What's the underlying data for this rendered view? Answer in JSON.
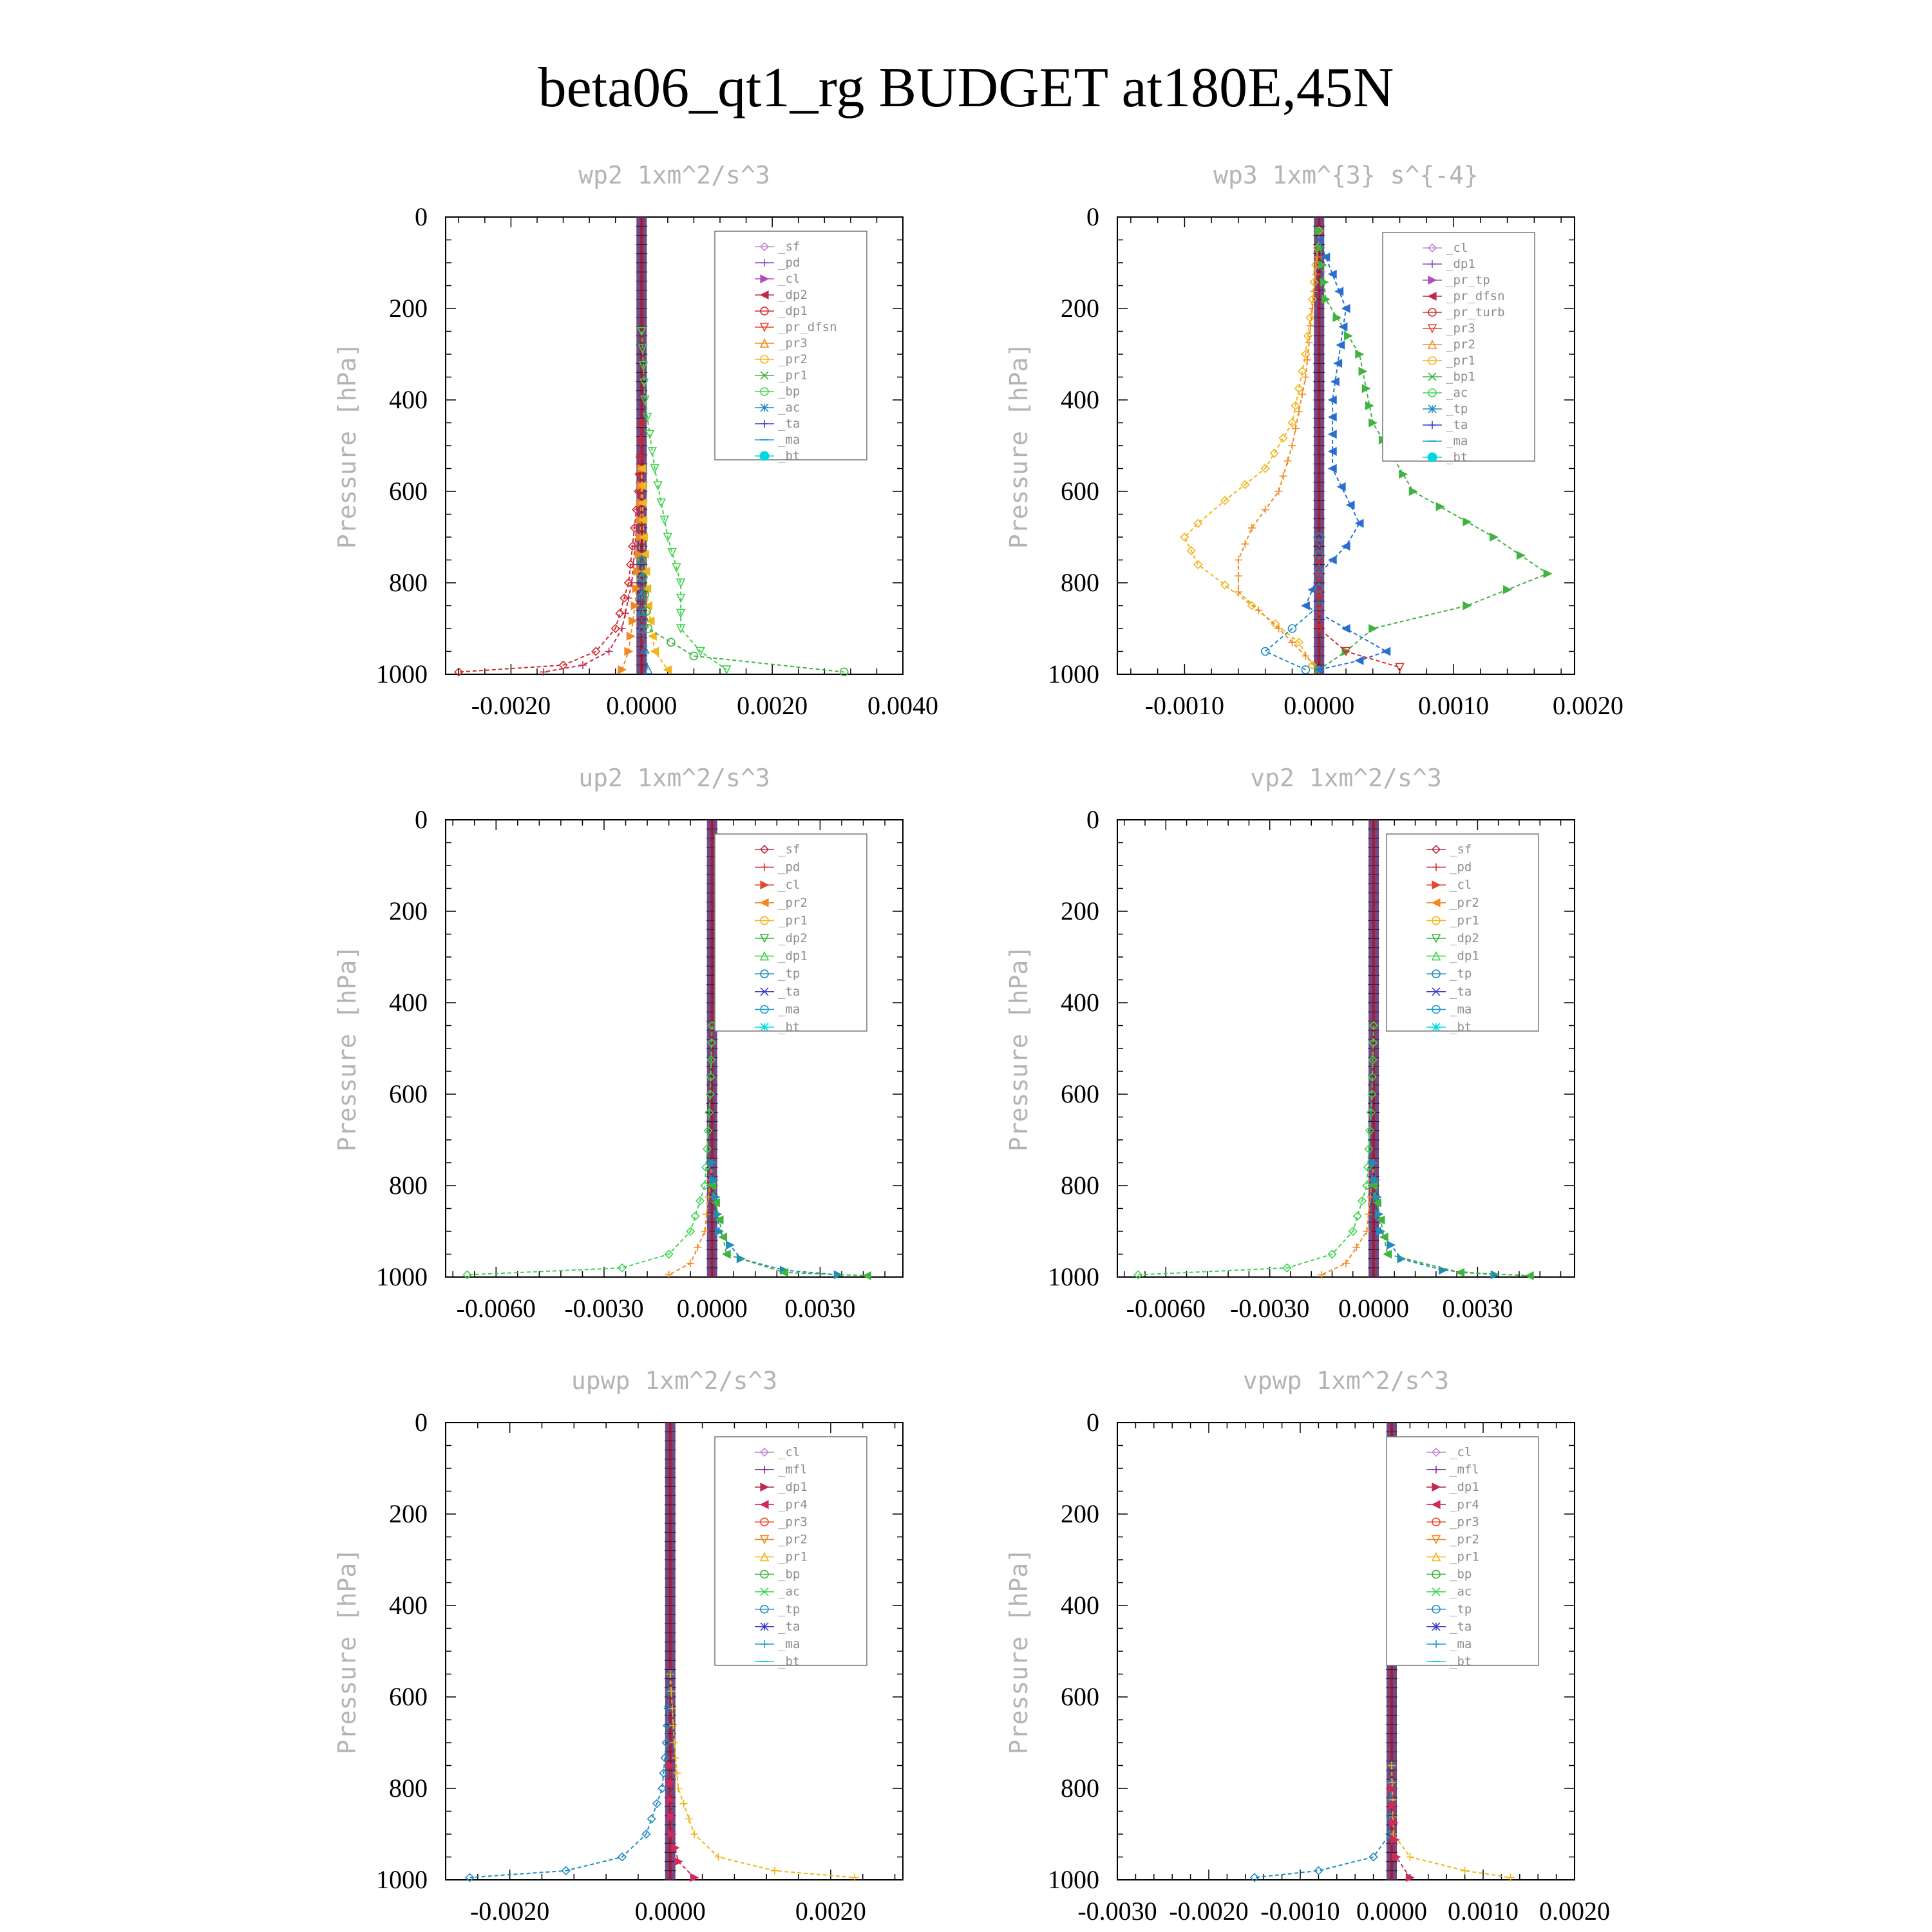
{
  "title": "beta06_qt1_rg  BUDGET at180E,45N",
  "colors": {
    "sf": "#c08ad8",
    "pd": "#8a4fc7",
    "cl": "#b04fb8",
    "dp2": "#c02a4a",
    "dp1": "#d42a2a",
    "pr_dfsn": "#e8452f",
    "pr3": "#f08a20",
    "pr2": "#f2b51a",
    "pr1": "#40b340",
    "bp": "#3fd44f",
    "ac": "#1f8bbf",
    "ta": "#3a3ad0",
    "ma": "#1f9ed0",
    "bt": "#00d8e0",
    "tp": "#2a6fd0",
    "mfl": "#7a2a8f",
    "pr4": "#d02a5a",
    "bar": "#5a2a6a",
    "barAlt": "#b0102a"
  },
  "chart_data": [
    {
      "type": "line",
      "title": "wp2  1xm^2/s^3",
      "ylabel": "Pressure [hPa]",
      "xlim": [
        -0.003,
        0.004
      ],
      "xticks": [
        "-0.0020",
        "0.0000",
        "0.0020",
        "0.0040"
      ],
      "xtick_values": [
        -0.002,
        0,
        0.002,
        0.004
      ],
      "ylim": [
        0,
        1000
      ],
      "yticks": [
        "0",
        "200",
        "400",
        "600",
        "800",
        "1000"
      ],
      "legend_position": "top-right",
      "legend": [
        "_sf",
        "_pd",
        "_cl",
        "_dp2",
        "_dp1",
        "_pr_dfsn",
        "_pr3",
        "_pr2",
        "_pr1",
        "_bp",
        "_ac",
        "_ta",
        "_ma",
        "_bt"
      ],
      "legend_keys": [
        "sf",
        "pd",
        "cl",
        "dp2",
        "dp1",
        "pr_dfsn",
        "pr3",
        "pr2",
        "pr1",
        "bp",
        "ac",
        "ta",
        "ma",
        "bt"
      ],
      "series": [
        {
          "key": "dp1",
          "y": [
            600,
            800,
            900,
            950,
            980,
            995
          ],
          "x": [
            -5e-05,
            -0.0002,
            -0.0004,
            -0.0007,
            -0.0012,
            -0.0028
          ]
        },
        {
          "key": "dp2",
          "y": [
            600,
            800,
            900,
            950,
            980,
            995
          ],
          "x": [
            -3e-05,
            -0.00015,
            -0.0003,
            -0.0005,
            -0.0009,
            -0.0015
          ]
        },
        {
          "key": "pr3",
          "y": [
            700,
            850,
            950,
            990
          ],
          "x": [
            -2e-05,
            -0.0001,
            -0.0002,
            -0.0003
          ]
        },
        {
          "key": "pr2",
          "y": [
            700,
            850,
            950,
            990
          ],
          "x": [
            3e-05,
            0.0001,
            0.0002,
            0.0004
          ]
        },
        {
          "key": "pr1",
          "y": [
            900,
            960,
            995
          ],
          "x": [
            0.0001,
            0.0008,
            0.0031
          ]
        },
        {
          "key": "bp",
          "y": [
            400,
            550,
            700,
            800,
            900,
            950,
            990
          ],
          "x": [
            5e-05,
            0.0002,
            0.0004,
            0.0006,
            0.0006,
            0.0009,
            0.0013
          ]
        },
        {
          "key": "ac",
          "y": [
            900,
            990
          ],
          "x": [
            0.0,
            0.0001
          ]
        }
      ]
    },
    {
      "type": "line",
      "title": "wp3  1xm^{3} s^{-4}",
      "ylabel": "Pressure [hPa]",
      "xlim": [
        -0.0015,
        0.0019
      ],
      "xticks": [
        "-0.0010",
        "0.0000",
        "0.0010",
        "0.0020"
      ],
      "xtick_values": [
        -0.001,
        0,
        0.001,
        0.002
      ],
      "ylim": [
        0,
        1000
      ],
      "yticks": [
        "0",
        "200",
        "400",
        "600",
        "800",
        "1000"
      ],
      "legend_position": "top-right",
      "legend": [
        "_cl",
        "_dp1",
        "_pr_tp",
        "_pr_dfsn",
        "_pr_turb",
        "_pr3",
        "_pr2",
        "_pr1",
        "_bp1",
        "_ac",
        "_tp",
        "_ta",
        "_ma",
        "_bt"
      ],
      "legend_keys": [
        "sf",
        "pd",
        "cl",
        "dp2",
        "dp1",
        "pr_dfsn",
        "pr3",
        "pr2",
        "pr1",
        "bp",
        "ac",
        "ta",
        "ma",
        "bt"
      ],
      "series": [
        {
          "key": "pr2",
          "y": [
            180,
            300,
            450,
            550,
            620,
            670,
            700,
            760,
            850,
            930,
            980
          ],
          "x": [
            -5e-05,
            -0.0001,
            -0.0002,
            -0.0004,
            -0.0007,
            -0.0009,
            -0.001,
            -0.0009,
            -0.0005,
            -0.00015,
            -5e-05
          ]
        },
        {
          "key": "pr3",
          "y": [
            200,
            350,
            500,
            600,
            680,
            750,
            820,
            900,
            960,
            990
          ],
          "x": [
            -5e-05,
            -0.0001,
            -0.0002,
            -0.0003,
            -0.0005,
            -0.0006,
            -0.0006,
            -0.0003,
            -0.0001,
            0.0
          ]
        },
        {
          "key": "pr1",
          "y": [
            180,
            300,
            450,
            600,
            700,
            780,
            850,
            900,
            950,
            990
          ],
          "x": [
            5e-05,
            0.0003,
            0.0004,
            0.0007,
            0.0013,
            0.0017,
            0.0011,
            0.0004,
            0.0002,
            0.0
          ]
        },
        {
          "key": "tp",
          "y": [
            200,
            400,
            550,
            670,
            720,
            780,
            850,
            900,
            950,
            970,
            990
          ],
          "x": [
            0.0002,
            0.0001,
            0.0001,
            0.0003,
            0.0002,
            0.0,
            -0.0001,
            0.0002,
            0.0005,
            0.0003,
            0.0
          ]
        },
        {
          "key": "ac",
          "y": [
            850,
            900,
            950,
            990
          ],
          "x": [
            0.0,
            -0.0002,
            -0.0004,
            -0.0001
          ]
        },
        {
          "key": "dp1",
          "y": [
            900,
            950,
            985
          ],
          "x": [
            0.0,
            0.0002,
            0.0006
          ]
        }
      ]
    },
    {
      "type": "line",
      "title": "up2  1xm^2/s^3",
      "ylabel": "Pressure [hPa]",
      "xlim": [
        -0.0074,
        0.0053
      ],
      "xticks": [
        "-0.0060",
        "-0.0030",
        "0.0000",
        "0.0030"
      ],
      "xtick_values": [
        -0.006,
        -0.003,
        0,
        0.003
      ],
      "ylim": [
        0,
        1000
      ],
      "yticks": [
        "0",
        "200",
        "400",
        "600",
        "800",
        "1000"
      ],
      "legend_position": "top-right",
      "legend": [
        "_sf",
        "_pd",
        "_cl",
        "_pr2",
        "_pr1",
        "_dp2",
        "_dp1",
        "_tp",
        "_ta",
        "_ma",
        "_bt"
      ],
      "legend_keys": [
        "dp2",
        "dp1",
        "pr_dfsn",
        "pr3",
        "pr2",
        "pr1",
        "bp",
        "ac",
        "ta",
        "ma",
        "bt"
      ],
      "series": [
        {
          "key": "bp",
          "y": [
            600,
            800,
            900,
            950,
            980,
            995
          ],
          "x": [
            -5e-05,
            -0.0002,
            -0.0006,
            -0.0012,
            -0.0025,
            -0.0068
          ]
        },
        {
          "key": "pr3",
          "y": [
            900,
            970,
            995
          ],
          "x": [
            -0.0002,
            -0.0006,
            -0.0012
          ]
        },
        {
          "key": "ac",
          "y": [
            900,
            960,
            985,
            995
          ],
          "x": [
            0.0002,
            0.0008,
            0.002,
            0.0035
          ]
        },
        {
          "key": "pr1",
          "y": [
            950,
            990,
            997
          ],
          "x": [
            0.0004,
            0.002,
            0.0043
          ]
        }
      ]
    },
    {
      "type": "line",
      "title": "vp2  1xm^2/s^3",
      "ylabel": "Pressure [hPa]",
      "xlim": [
        -0.0074,
        0.0058
      ],
      "xticks": [
        "-0.0060",
        "-0.0030",
        "0.0000",
        "0.0030"
      ],
      "xtick_values": [
        -0.006,
        -0.003,
        0,
        0.003
      ],
      "ylim": [
        0,
        1000
      ],
      "yticks": [
        "0",
        "200",
        "400",
        "600",
        "800",
        "1000"
      ],
      "legend_position": "top-right",
      "legend": [
        "_sf",
        "_pd",
        "_cl",
        "_pr2",
        "_pr1",
        "_dp2",
        "_dp1",
        "_tp",
        "_ta",
        "_ma",
        "_bt"
      ],
      "legend_keys": [
        "dp2",
        "dp1",
        "pr_dfsn",
        "pr3",
        "pr2",
        "pr1",
        "bp",
        "ac",
        "ta",
        "ma",
        "bt"
      ],
      "series": [
        {
          "key": "bp",
          "y": [
            600,
            800,
            900,
            950,
            980,
            995
          ],
          "x": [
            -5e-05,
            -0.0002,
            -0.0006,
            -0.0012,
            -0.0025,
            -0.0068
          ]
        },
        {
          "key": "pr3",
          "y": [
            900,
            970,
            995
          ],
          "x": [
            -0.0002,
            -0.0008,
            -0.0015
          ]
        },
        {
          "key": "ac",
          "y": [
            900,
            960,
            985,
            995
          ],
          "x": [
            0.0002,
            0.0008,
            0.002,
            0.0035
          ]
        },
        {
          "key": "pr1",
          "y": [
            950,
            990,
            997
          ],
          "x": [
            0.0004,
            0.0025,
            0.0045
          ]
        }
      ]
    },
    {
      "type": "line",
      "title": "upwp  1xm^2/s^3",
      "ylabel": "Pressure [hPa]",
      "xlim": [
        -0.0028,
        0.0029
      ],
      "xticks": [
        "-0.0020",
        "0.0000",
        "0.0020"
      ],
      "xtick_values": [
        -0.002,
        0,
        0.002
      ],
      "ylim": [
        0,
        1000
      ],
      "yticks": [
        "0",
        "200",
        "400",
        "600",
        "800",
        "1000"
      ],
      "legend_position": "top-right",
      "legend": [
        "_cl",
        "_mfl",
        "_dp1",
        "_pr4",
        "_pr3",
        "_pr2",
        "_pr1",
        "_bp",
        "_ac",
        "_tp",
        "_ta",
        "_ma",
        "_bt"
      ],
      "legend_keys": [
        "sf",
        "mfl",
        "dp2",
        "pr4",
        "pr_dfsn",
        "pr3",
        "pr2",
        "pr1",
        "bp",
        "ac",
        "ta",
        "ma",
        "bt"
      ],
      "series": [
        {
          "key": "ac",
          "y": [
            700,
            800,
            900,
            950,
            980,
            995
          ],
          "x": [
            -5e-05,
            -0.0001,
            -0.0003,
            -0.0006,
            -0.0013,
            -0.0025
          ]
        },
        {
          "key": "pr2",
          "y": [
            700,
            800,
            900,
            950,
            980,
            995
          ],
          "x": [
            5e-05,
            0.0001,
            0.0003,
            0.0006,
            0.0013,
            0.0023
          ]
        },
        {
          "key": "pr4",
          "y": [
            900,
            960,
            995
          ],
          "x": [
            2e-05,
            0.0001,
            0.0003
          ]
        }
      ]
    },
    {
      "type": "line",
      "title": "vpwp  1xm^2/s^3",
      "ylabel": "Pressure [hPa]",
      "xlim": [
        -0.003,
        0.002
      ],
      "xticks": [
        "-0.0030",
        "-0.0020",
        "-0.0010",
        "0.0000",
        "0.0010",
        "0.0020"
      ],
      "xtick_values": [
        -0.003,
        -0.002,
        -0.001,
        0,
        0.001,
        0.002
      ],
      "ylim": [
        0,
        1000
      ],
      "yticks": [
        "0",
        "200",
        "400",
        "600",
        "800",
        "1000"
      ],
      "legend_position": "top-right",
      "legend": [
        "_cl",
        "_mfl",
        "_dp1",
        "_pr4",
        "_pr3",
        "_pr2",
        "_pr1",
        "_bp",
        "_ac",
        "_tp",
        "_ta",
        "_ma",
        "_bt"
      ],
      "legend_keys": [
        "sf",
        "mfl",
        "dp2",
        "pr4",
        "pr_dfsn",
        "pr3",
        "pr2",
        "pr1",
        "bp",
        "ac",
        "ta",
        "ma",
        "bt"
      ],
      "series": [
        {
          "key": "ac",
          "y": [
            900,
            950,
            980,
            995
          ],
          "x": [
            -2e-05,
            -0.0002,
            -0.0008,
            -0.0015
          ]
        },
        {
          "key": "pr2",
          "y": [
            900,
            950,
            980,
            995
          ],
          "x": [
            2e-05,
            0.0002,
            0.0008,
            0.0013
          ]
        },
        {
          "key": "pr4",
          "y": [
            950,
            995
          ],
          "x": [
            5e-05,
            0.0002
          ]
        }
      ]
    }
  ]
}
